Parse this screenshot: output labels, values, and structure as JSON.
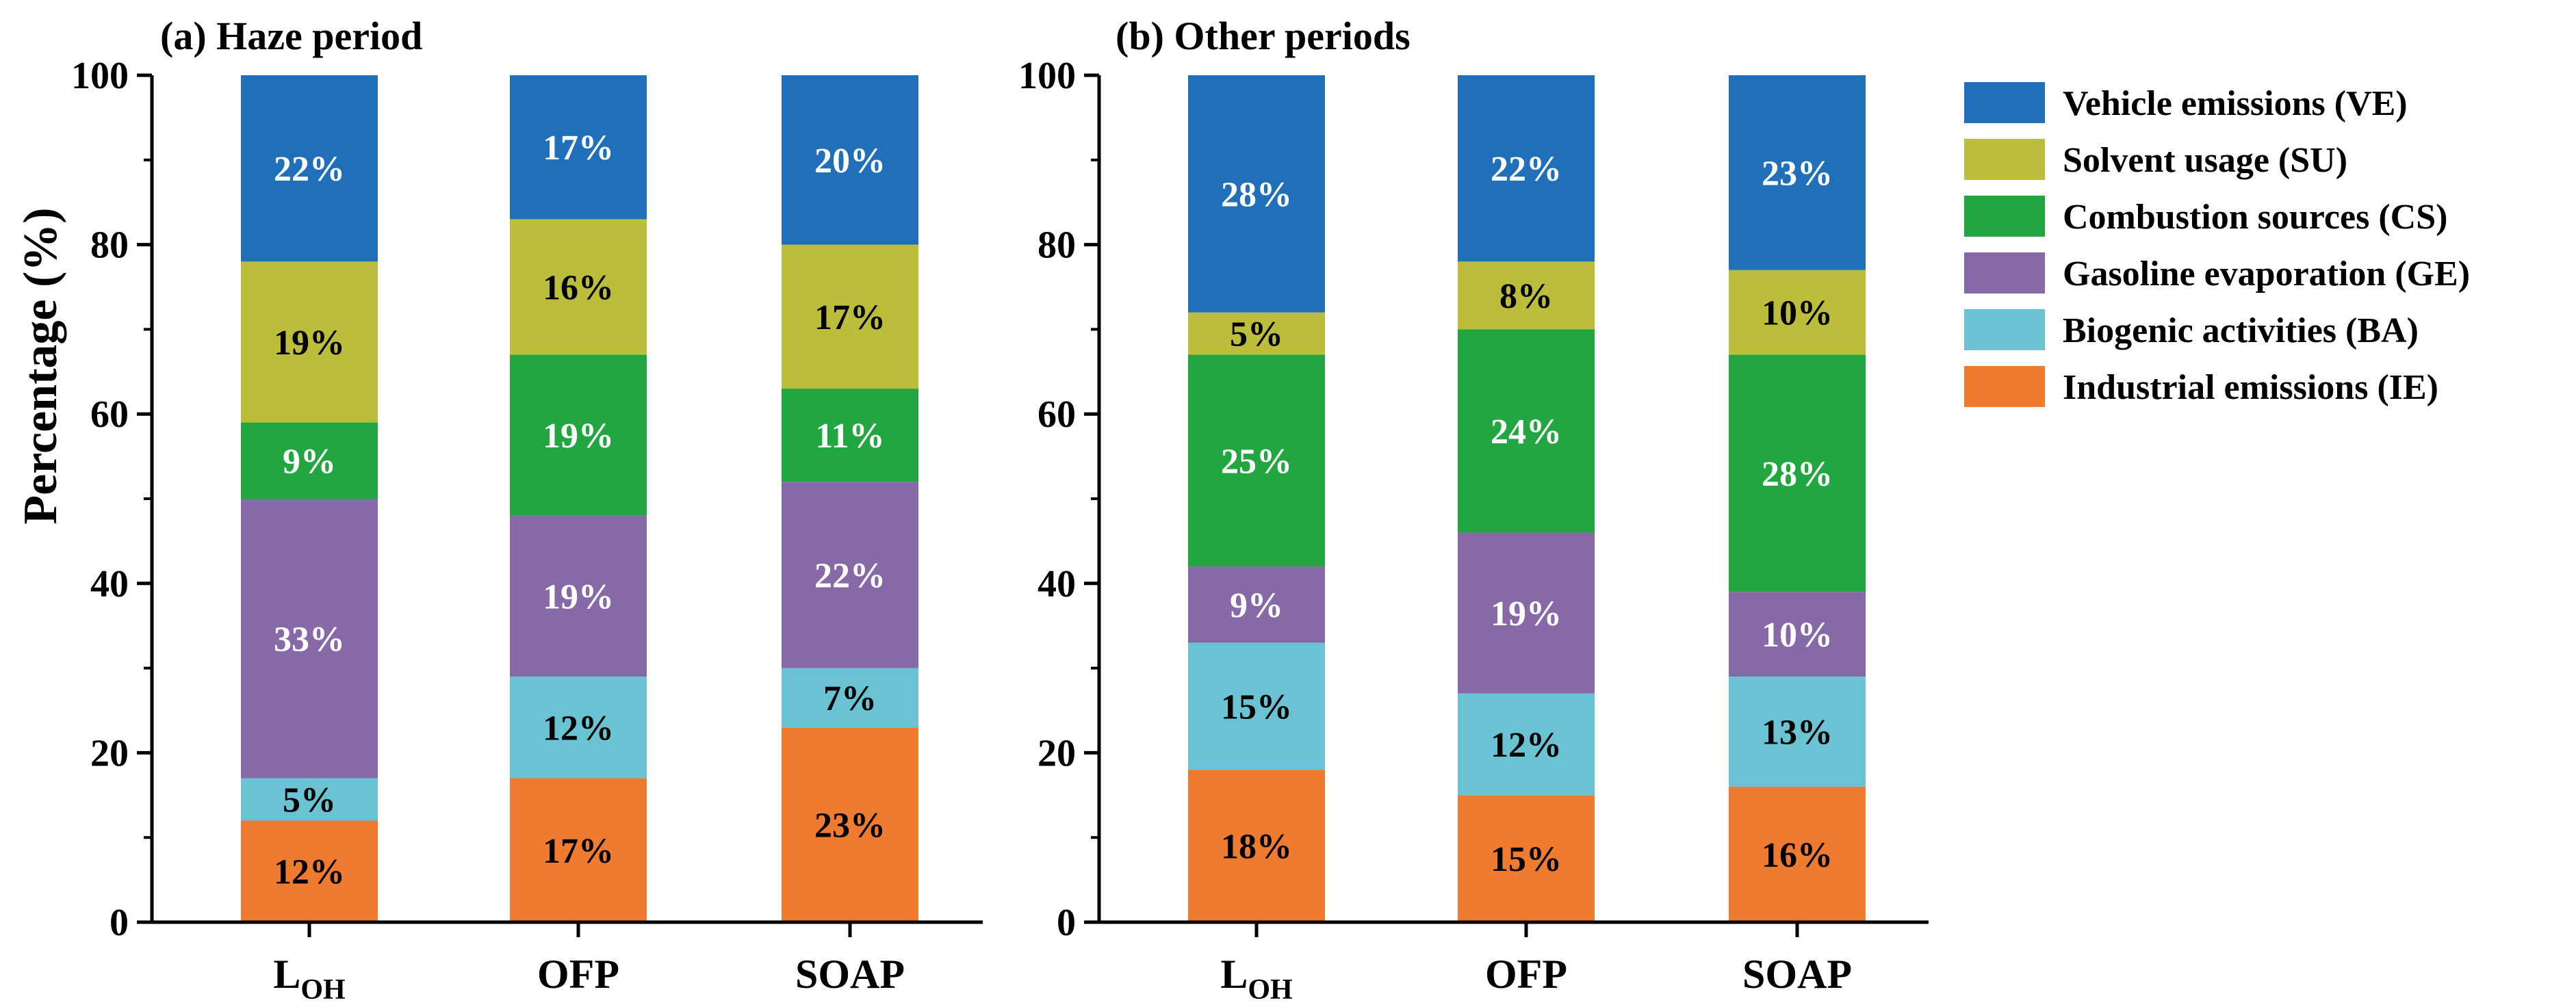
{
  "figure": {
    "ylabel": "Percentage (%)"
  },
  "legend": [
    {
      "name": "Vehicle emissions (VE)",
      "color": "#1F70B8"
    },
    {
      "name": "Solvent usage (SU)",
      "color": "#BCBD3A"
    },
    {
      "name": "Combustion sources (CS)",
      "color": "#22A640"
    },
    {
      "name": "Gasoline evaporation (GE)",
      "color": "#8769A8"
    },
    {
      "name": "Biogenic activities (BA)",
      "color": "#6AC3D2"
    },
    {
      "name": "Industrial emissions (IE)",
      "color": "#EF7B30"
    }
  ],
  "chart_data": [
    {
      "type": "bar",
      "stacked": true,
      "title": "(a) Haze period",
      "ylabel": "Percentage (%)",
      "ylim": [
        0,
        100
      ],
      "yticks": [
        0,
        20,
        40,
        60,
        80,
        100
      ],
      "categories": [
        "L_OH",
        "OFP",
        "SOAP"
      ],
      "category_labels": [
        {
          "main": "L",
          "sub": "OH"
        },
        {
          "main": "OFP",
          "sub": ""
        },
        {
          "main": "SOAP",
          "sub": ""
        }
      ],
      "series": [
        {
          "name": "Industrial emissions (IE)",
          "values": [
            12,
            17,
            23
          ],
          "labels": [
            "12%",
            "17%",
            "23%"
          ],
          "label_color": "#000000"
        },
        {
          "name": "Biogenic activities (BA)",
          "values": [
            5,
            12,
            7
          ],
          "labels": [
            "5%",
            "12%",
            "7%"
          ],
          "label_color": "#000000"
        },
        {
          "name": "Gasoline evaporation (GE)",
          "values": [
            33,
            19,
            22
          ],
          "labels": [
            "33%",
            "19%",
            "22%"
          ],
          "label_color": "#ffffff"
        },
        {
          "name": "Combustion sources (CS)",
          "values": [
            9,
            19,
            11
          ],
          "labels": [
            "9%",
            "19%",
            "11%"
          ],
          "label_color": "#ffffff"
        },
        {
          "name": "Solvent usage (SU)",
          "values": [
            19,
            16,
            17
          ],
          "labels": [
            "19%",
            "16%",
            "17%"
          ],
          "label_color": "#000000"
        },
        {
          "name": "Vehicle emissions (VE)",
          "values": [
            22,
            17,
            20
          ],
          "labels": [
            "22%",
            "17%",
            "20%"
          ],
          "label_color": "#ffffff"
        }
      ]
    },
    {
      "type": "bar",
      "stacked": true,
      "title": "(b) Other periods",
      "ylim": [
        0,
        100
      ],
      "yticks": [
        0,
        20,
        40,
        60,
        80,
        100
      ],
      "categories": [
        "L_OH",
        "OFP",
        "SOAP"
      ],
      "category_labels": [
        {
          "main": "L",
          "sub": "OH"
        },
        {
          "main": "OFP",
          "sub": ""
        },
        {
          "main": "SOAP",
          "sub": ""
        }
      ],
      "series": [
        {
          "name": "Industrial emissions (IE)",
          "values": [
            18,
            15,
            16
          ],
          "labels": [
            "18%",
            "15%",
            "16%"
          ],
          "label_color": "#000000"
        },
        {
          "name": "Biogenic activities (BA)",
          "values": [
            15,
            12,
            13
          ],
          "labels": [
            "15%",
            "12%",
            "13%"
          ],
          "label_color": "#000000"
        },
        {
          "name": "Gasoline evaporation (GE)",
          "values": [
            9,
            19,
            10
          ],
          "labels": [
            "9%",
            "19%",
            "10%"
          ],
          "label_color": "#ffffff"
        },
        {
          "name": "Combustion sources (CS)",
          "values": [
            25,
            24,
            28
          ],
          "labels": [
            "25%",
            "24%",
            "28%"
          ],
          "label_color": "#ffffff"
        },
        {
          "name": "Solvent usage (SU)",
          "values": [
            5,
            8,
            10
          ],
          "labels": [
            "5%",
            "8%",
            "10%"
          ],
          "label_color": "#000000"
        },
        {
          "name": "Vehicle emissions (VE)",
          "values": [
            28,
            22,
            23
          ],
          "labels": [
            "28%",
            "22%",
            "23%"
          ],
          "label_color": "#ffffff"
        }
      ]
    }
  ]
}
